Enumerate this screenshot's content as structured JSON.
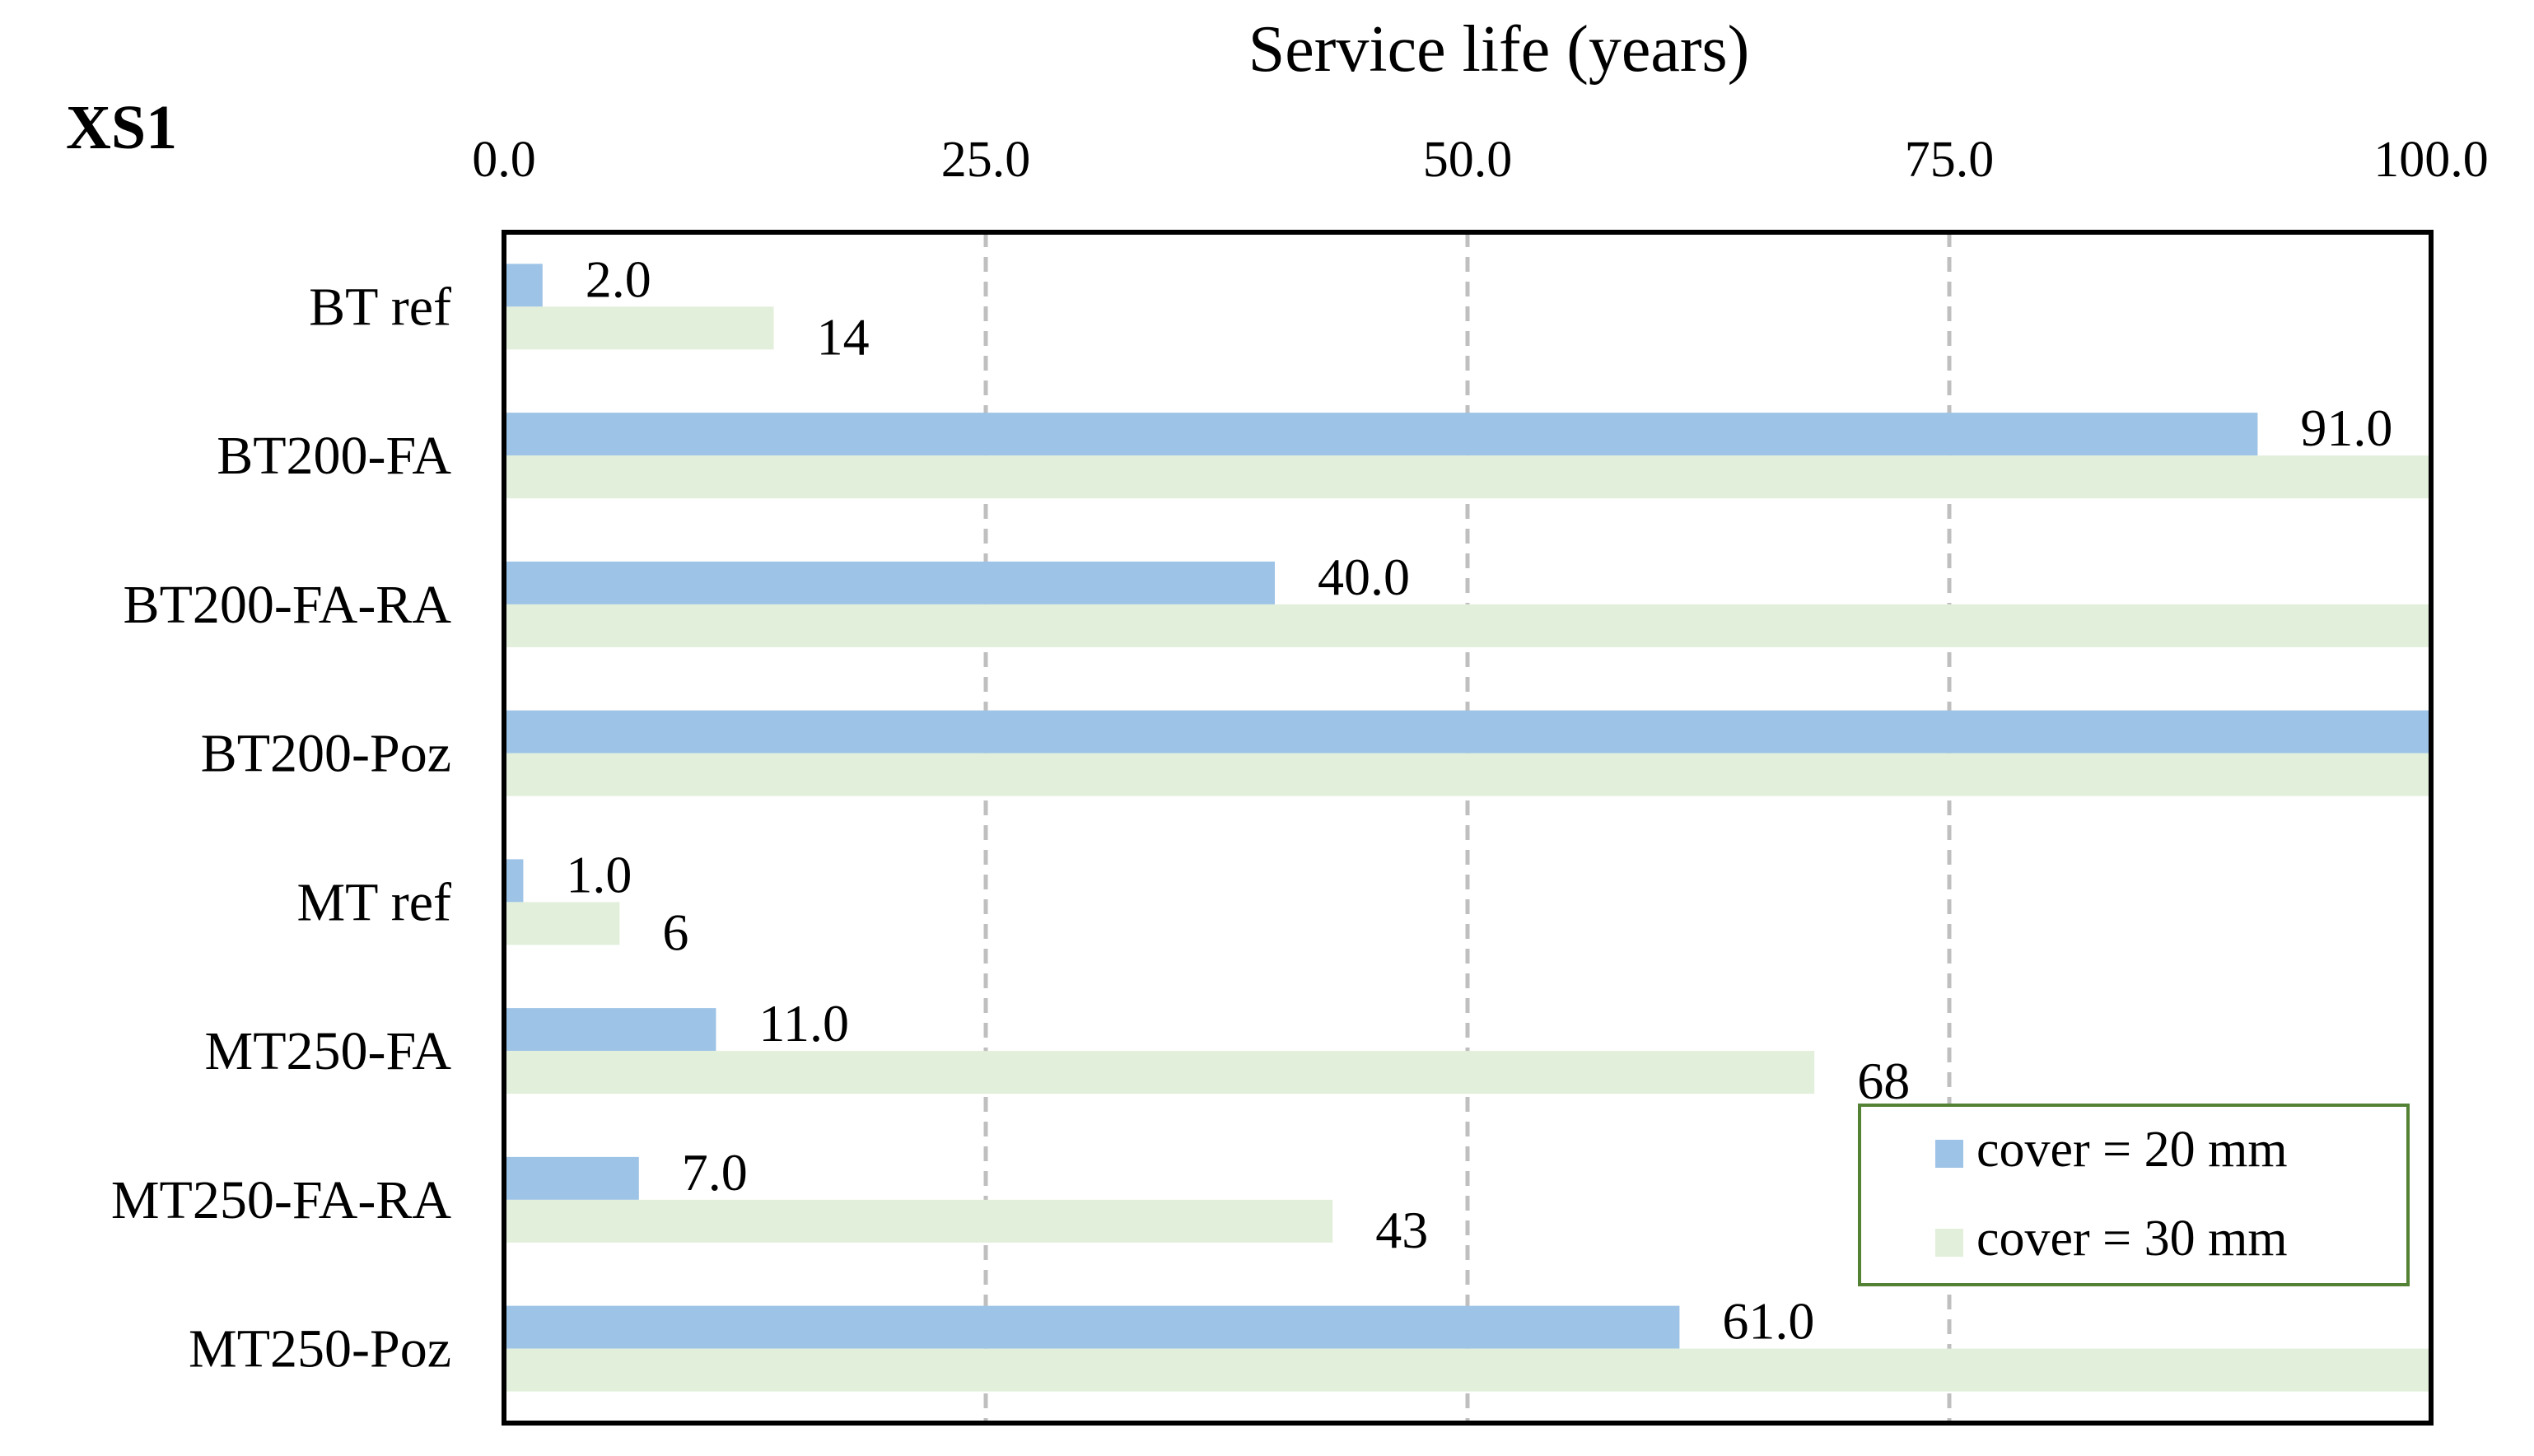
{
  "chart_data": {
    "type": "bar",
    "orientation": "horizontal",
    "panel_label": "XS1",
    "title": "",
    "xlabel": "Service life (years)",
    "ylabel": "",
    "xlim": [
      0,
      100
    ],
    "xticks": [
      0,
      25,
      50,
      75,
      100
    ],
    "xtick_labels": [
      "0.0",
      "25.0",
      "50.0",
      "75.0",
      "100.0"
    ],
    "grid": "vertical dashed",
    "categories": [
      "BT ref",
      "BT200-FA",
      "BT200-FA-RA",
      "BT200-Poz",
      "MT ref",
      "MT250-FA",
      "MT250-FA-RA",
      "MT250-Poz"
    ],
    "series": [
      {
        "name": "cover = 20 mm",
        "color": "#9DC3E6",
        "values": [
          2,
          91,
          40,
          100,
          1,
          11,
          7,
          61
        ],
        "labels": [
          "2.0",
          "91.0",
          "40.0",
          "",
          "1.0",
          "11.0",
          "7.0",
          "61.0"
        ]
      },
      {
        "name": "cover = 30 mm",
        "color": "#E2EFDA",
        "values": [
          14,
          100,
          100,
          100,
          6,
          68,
          43,
          100
        ],
        "labels": [
          "14",
          "",
          "",
          "",
          "6",
          "68",
          "43",
          ""
        ]
      }
    ],
    "legend": {
      "position": "bottom-right",
      "border_color": "#548235"
    },
    "frame_color": "#000000",
    "grid_color": "#BFBFBF"
  }
}
